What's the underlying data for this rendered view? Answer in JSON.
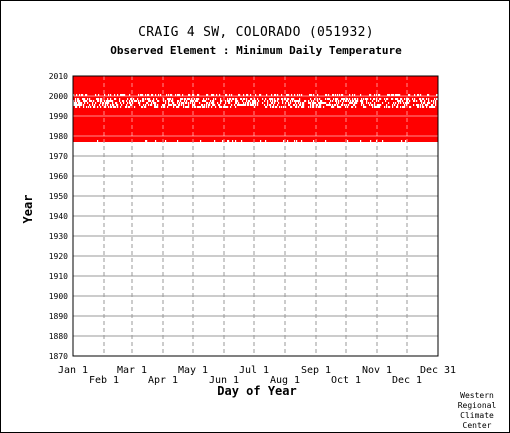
{
  "header": {
    "title": "CRAIG 4 SW, COLORADO   (051932)",
    "subtitle": "Observed Element : Minimum Daily Temperature"
  },
  "credit": [
    "Western",
    "Regional",
    "Climate",
    "Center"
  ],
  "colors": {
    "data": "#ff0000",
    "grid": "#999999",
    "gap": "#ffffff"
  },
  "chart_data": {
    "type": "heatmap",
    "title": "CRAIG 4 SW, COLORADO   (051932)",
    "subtitle": "Observed Element : Minimum Daily Temperature",
    "xlabel": "Day of Year",
    "ylabel": "Year",
    "xlim": [
      1,
      366
    ],
    "ylim": [
      1870,
      2010
    ],
    "grid": true,
    "x_ticks_upper": [
      {
        "label": "Jan 1",
        "day": 1
      },
      {
        "label": "Mar 1",
        "day": 60
      },
      {
        "label": "May 1",
        "day": 121
      },
      {
        "label": "Jul 1",
        "day": 182
      },
      {
        "label": "Sep 1",
        "day": 244
      },
      {
        "label": "Nov 1",
        "day": 305
      },
      {
        "label": "Dec 31",
        "day": 366
      }
    ],
    "x_ticks_lower": [
      {
        "label": "Feb 1",
        "day": 32
      },
      {
        "label": "Apr 1",
        "day": 91
      },
      {
        "label": "Jun 1",
        "day": 152
      },
      {
        "label": "Aug 1",
        "day": 213
      },
      {
        "label": "Oct 1",
        "day": 274
      },
      {
        "label": "Dec 1",
        "day": 335
      }
    ],
    "y_ticks": [
      1870,
      1880,
      1890,
      1900,
      1910,
      1920,
      1930,
      1940,
      1950,
      1960,
      1970,
      1980,
      1990,
      2000,
      2010
    ],
    "data_coverage": {
      "start_year": 1977,
      "end_year": 2010,
      "status": "observed"
    },
    "missing_day_years": [
      1994,
      1995,
      1996,
      1997,
      1998,
      2000
    ]
  }
}
